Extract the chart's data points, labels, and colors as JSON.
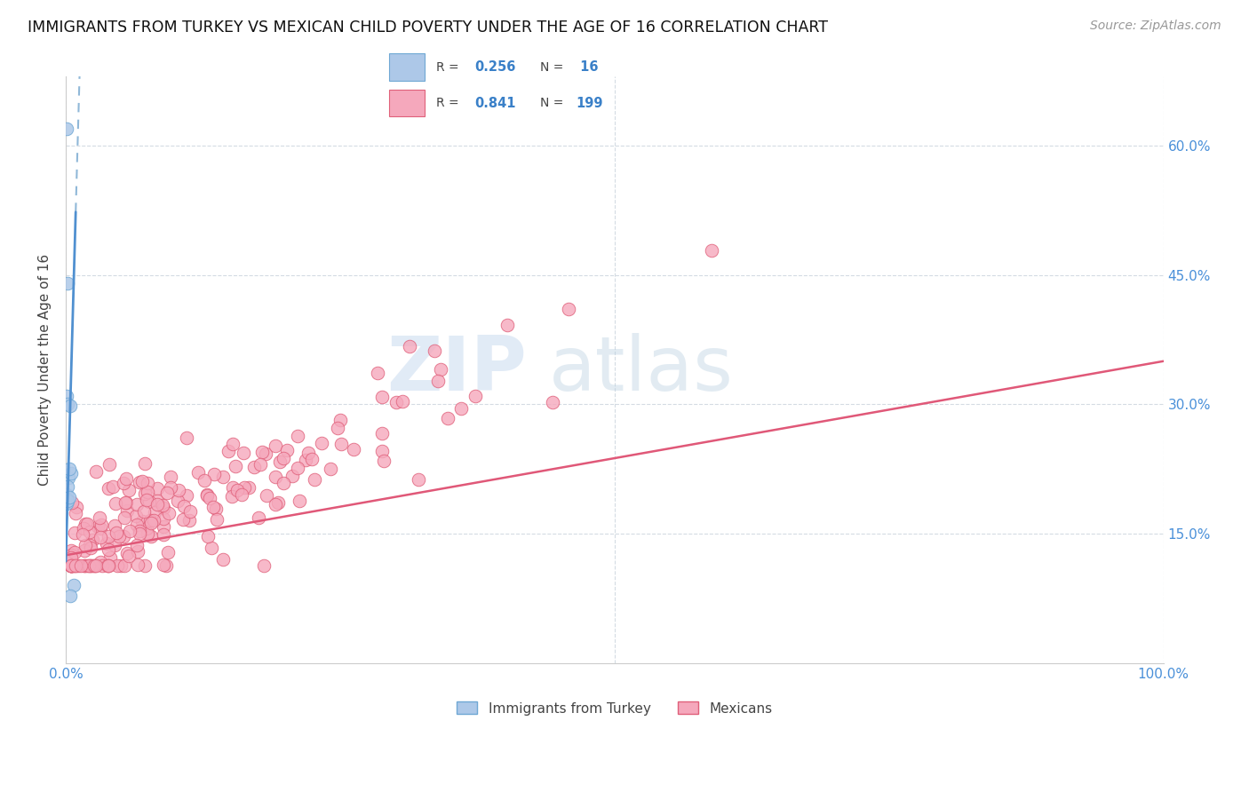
{
  "title": "IMMIGRANTS FROM TURKEY VS MEXICAN CHILD POVERTY UNDER THE AGE OF 16 CORRELATION CHART",
  "source": "Source: ZipAtlas.com",
  "ylabel": "Child Poverty Under the Age of 16",
  "xlim": [
    0,
    1.0
  ],
  "ylim": [
    0,
    0.68
  ],
  "yticks_right": [
    0.15,
    0.3,
    0.45,
    0.6
  ],
  "ytick_labels_right": [
    "15.0%",
    "30.0%",
    "45.0%",
    "60.0%"
  ],
  "xtick_positions": [
    0.0,
    0.5,
    1.0
  ],
  "xtick_labels": [
    "0.0%",
    "",
    "100.0%"
  ],
  "turkey_color": "#adc8e8",
  "turkey_edge_color": "#6fa8d4",
  "mexican_color": "#f5a8bc",
  "mexican_edge_color": "#e0607a",
  "turkey_line_color": "#5090d0",
  "turkey_line_dash_color": "#90b8d8",
  "mexican_line_color": "#e05878",
  "R_turkey": 0.256,
  "N_turkey": 16,
  "R_mexican": 0.841,
  "N_mexican": 199,
  "legend_label_turkey": "Immigrants from Turkey",
  "legend_label_mexican": "Mexicans",
  "watermark_zip": "ZIP",
  "watermark_atlas": "atlas",
  "turkey_x": [
    0.0008,
    0.0012,
    0.001,
    0.0025,
    0.0018,
    0.0009,
    0.0045,
    0.003,
    0.0008,
    0.0016,
    0.0075,
    0.0038,
    0.0028,
    0.0009,
    0.0017,
    0.0042
  ],
  "turkey_y": [
    0.62,
    0.44,
    0.195,
    0.215,
    0.205,
    0.19,
    0.22,
    0.225,
    0.185,
    0.188,
    0.09,
    0.078,
    0.192,
    0.31,
    0.3,
    0.298
  ],
  "mex_trend_x0": 0.0,
  "mex_trend_y0": 0.125,
  "mex_trend_x1": 1.0,
  "mex_trend_y1": 0.35,
  "tur_trend_intercept": 0.118,
  "tur_trend_slope": 45.0
}
